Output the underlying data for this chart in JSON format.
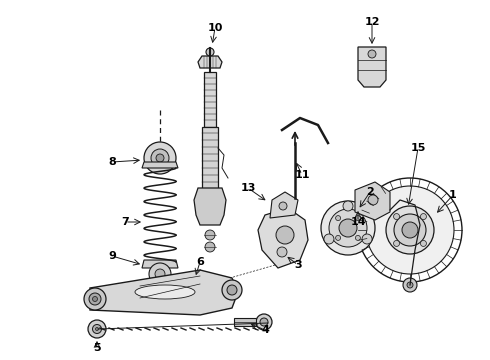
{
  "background_color": "#ffffff",
  "line_color": "#1a1a1a",
  "label_color": "#000000",
  "figsize": [
    4.9,
    3.6
  ],
  "dpi": 100,
  "xlim": [
    0,
    490
  ],
  "ylim": [
    360,
    0
  ]
}
